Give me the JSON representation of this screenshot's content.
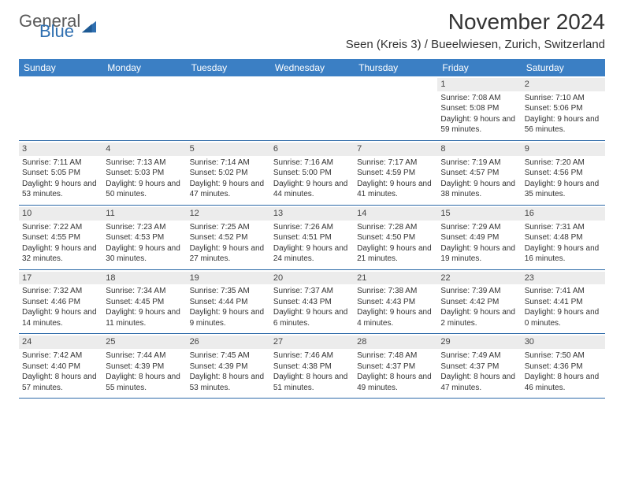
{
  "brand": {
    "general": "General",
    "blue": "Blue"
  },
  "title": "November 2024",
  "location": "Seen (Kreis 3) / Bueelwiesen, Zurich, Switzerland",
  "colors": {
    "header_bg": "#3b7fc4",
    "header_text": "#ffffff",
    "daynum_bg": "#ececec",
    "week_border": "#2e6aa8",
    "text": "#333333",
    "logo_gray": "#5a5a5a",
    "logo_blue": "#2f6fb0"
  },
  "weekdays": [
    "Sunday",
    "Monday",
    "Tuesday",
    "Wednesday",
    "Thursday",
    "Friday",
    "Saturday"
  ],
  "weeks": [
    [
      {
        "n": "",
        "sunrise": "",
        "sunset": "",
        "daylight": ""
      },
      {
        "n": "",
        "sunrise": "",
        "sunset": "",
        "daylight": ""
      },
      {
        "n": "",
        "sunrise": "",
        "sunset": "",
        "daylight": ""
      },
      {
        "n": "",
        "sunrise": "",
        "sunset": "",
        "daylight": ""
      },
      {
        "n": "",
        "sunrise": "",
        "sunset": "",
        "daylight": ""
      },
      {
        "n": "1",
        "sunrise": "Sunrise: 7:08 AM",
        "sunset": "Sunset: 5:08 PM",
        "daylight": "Daylight: 9 hours and 59 minutes."
      },
      {
        "n": "2",
        "sunrise": "Sunrise: 7:10 AM",
        "sunset": "Sunset: 5:06 PM",
        "daylight": "Daylight: 9 hours and 56 minutes."
      }
    ],
    [
      {
        "n": "3",
        "sunrise": "Sunrise: 7:11 AM",
        "sunset": "Sunset: 5:05 PM",
        "daylight": "Daylight: 9 hours and 53 minutes."
      },
      {
        "n": "4",
        "sunrise": "Sunrise: 7:13 AM",
        "sunset": "Sunset: 5:03 PM",
        "daylight": "Daylight: 9 hours and 50 minutes."
      },
      {
        "n": "5",
        "sunrise": "Sunrise: 7:14 AM",
        "sunset": "Sunset: 5:02 PM",
        "daylight": "Daylight: 9 hours and 47 minutes."
      },
      {
        "n": "6",
        "sunrise": "Sunrise: 7:16 AM",
        "sunset": "Sunset: 5:00 PM",
        "daylight": "Daylight: 9 hours and 44 minutes."
      },
      {
        "n": "7",
        "sunrise": "Sunrise: 7:17 AM",
        "sunset": "Sunset: 4:59 PM",
        "daylight": "Daylight: 9 hours and 41 minutes."
      },
      {
        "n": "8",
        "sunrise": "Sunrise: 7:19 AM",
        "sunset": "Sunset: 4:57 PM",
        "daylight": "Daylight: 9 hours and 38 minutes."
      },
      {
        "n": "9",
        "sunrise": "Sunrise: 7:20 AM",
        "sunset": "Sunset: 4:56 PM",
        "daylight": "Daylight: 9 hours and 35 minutes."
      }
    ],
    [
      {
        "n": "10",
        "sunrise": "Sunrise: 7:22 AM",
        "sunset": "Sunset: 4:55 PM",
        "daylight": "Daylight: 9 hours and 32 minutes."
      },
      {
        "n": "11",
        "sunrise": "Sunrise: 7:23 AM",
        "sunset": "Sunset: 4:53 PM",
        "daylight": "Daylight: 9 hours and 30 minutes."
      },
      {
        "n": "12",
        "sunrise": "Sunrise: 7:25 AM",
        "sunset": "Sunset: 4:52 PM",
        "daylight": "Daylight: 9 hours and 27 minutes."
      },
      {
        "n": "13",
        "sunrise": "Sunrise: 7:26 AM",
        "sunset": "Sunset: 4:51 PM",
        "daylight": "Daylight: 9 hours and 24 minutes."
      },
      {
        "n": "14",
        "sunrise": "Sunrise: 7:28 AM",
        "sunset": "Sunset: 4:50 PM",
        "daylight": "Daylight: 9 hours and 21 minutes."
      },
      {
        "n": "15",
        "sunrise": "Sunrise: 7:29 AM",
        "sunset": "Sunset: 4:49 PM",
        "daylight": "Daylight: 9 hours and 19 minutes."
      },
      {
        "n": "16",
        "sunrise": "Sunrise: 7:31 AM",
        "sunset": "Sunset: 4:48 PM",
        "daylight": "Daylight: 9 hours and 16 minutes."
      }
    ],
    [
      {
        "n": "17",
        "sunrise": "Sunrise: 7:32 AM",
        "sunset": "Sunset: 4:46 PM",
        "daylight": "Daylight: 9 hours and 14 minutes."
      },
      {
        "n": "18",
        "sunrise": "Sunrise: 7:34 AM",
        "sunset": "Sunset: 4:45 PM",
        "daylight": "Daylight: 9 hours and 11 minutes."
      },
      {
        "n": "19",
        "sunrise": "Sunrise: 7:35 AM",
        "sunset": "Sunset: 4:44 PM",
        "daylight": "Daylight: 9 hours and 9 minutes."
      },
      {
        "n": "20",
        "sunrise": "Sunrise: 7:37 AM",
        "sunset": "Sunset: 4:43 PM",
        "daylight": "Daylight: 9 hours and 6 minutes."
      },
      {
        "n": "21",
        "sunrise": "Sunrise: 7:38 AM",
        "sunset": "Sunset: 4:43 PM",
        "daylight": "Daylight: 9 hours and 4 minutes."
      },
      {
        "n": "22",
        "sunrise": "Sunrise: 7:39 AM",
        "sunset": "Sunset: 4:42 PM",
        "daylight": "Daylight: 9 hours and 2 minutes."
      },
      {
        "n": "23",
        "sunrise": "Sunrise: 7:41 AM",
        "sunset": "Sunset: 4:41 PM",
        "daylight": "Daylight: 9 hours and 0 minutes."
      }
    ],
    [
      {
        "n": "24",
        "sunrise": "Sunrise: 7:42 AM",
        "sunset": "Sunset: 4:40 PM",
        "daylight": "Daylight: 8 hours and 57 minutes."
      },
      {
        "n": "25",
        "sunrise": "Sunrise: 7:44 AM",
        "sunset": "Sunset: 4:39 PM",
        "daylight": "Daylight: 8 hours and 55 minutes."
      },
      {
        "n": "26",
        "sunrise": "Sunrise: 7:45 AM",
        "sunset": "Sunset: 4:39 PM",
        "daylight": "Daylight: 8 hours and 53 minutes."
      },
      {
        "n": "27",
        "sunrise": "Sunrise: 7:46 AM",
        "sunset": "Sunset: 4:38 PM",
        "daylight": "Daylight: 8 hours and 51 minutes."
      },
      {
        "n": "28",
        "sunrise": "Sunrise: 7:48 AM",
        "sunset": "Sunset: 4:37 PM",
        "daylight": "Daylight: 8 hours and 49 minutes."
      },
      {
        "n": "29",
        "sunrise": "Sunrise: 7:49 AM",
        "sunset": "Sunset: 4:37 PM",
        "daylight": "Daylight: 8 hours and 47 minutes."
      },
      {
        "n": "30",
        "sunrise": "Sunrise: 7:50 AM",
        "sunset": "Sunset: 4:36 PM",
        "daylight": "Daylight: 8 hours and 46 minutes."
      }
    ]
  ]
}
